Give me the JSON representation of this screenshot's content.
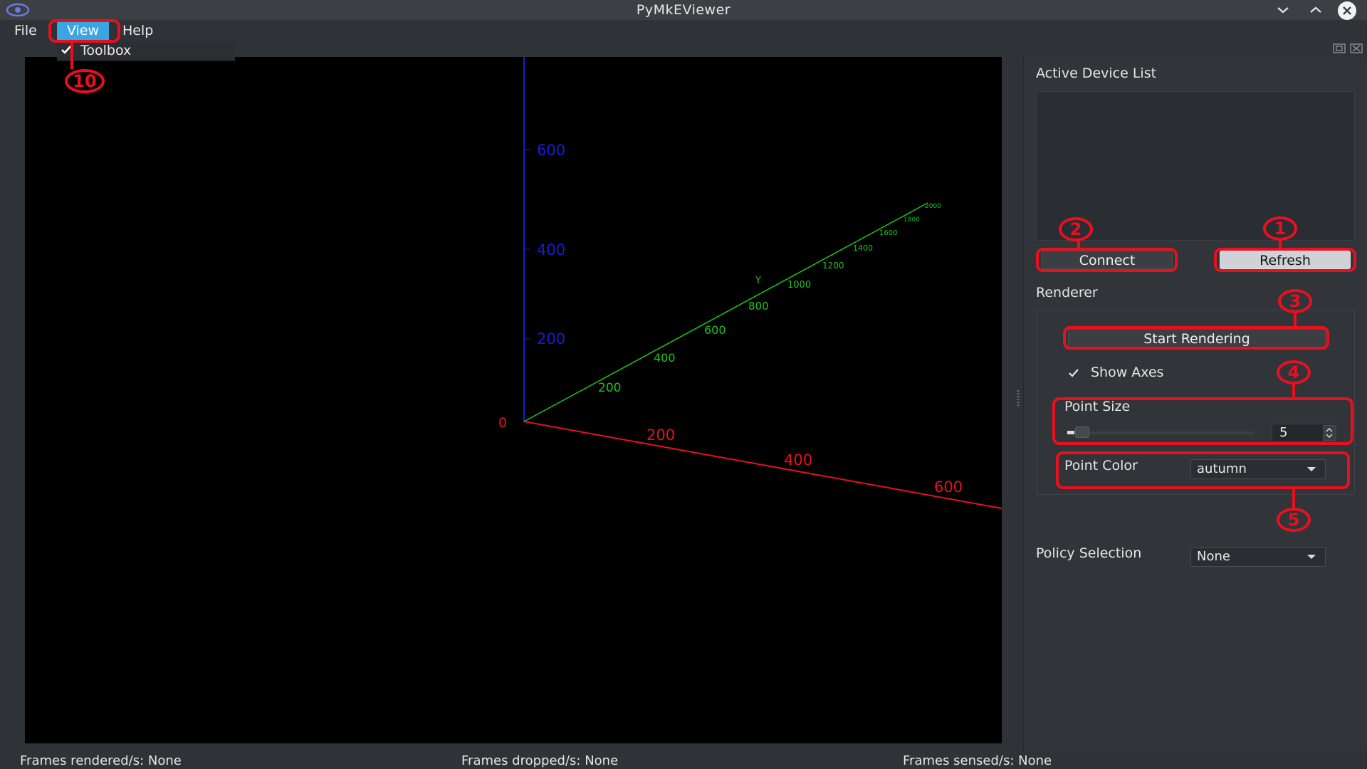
{
  "window": {
    "title": "PyMkEViewer",
    "icons": [
      "app-eye-icon",
      "minimize-icon",
      "maximize-icon",
      "close-icon"
    ]
  },
  "menubar": {
    "file": "File",
    "view": "View",
    "help": "Help",
    "view_menu": {
      "toolbox": "Toolbox",
      "toolbox_checked": true
    }
  },
  "viewport": {
    "z_axis_ticks": [
      "600",
      "400",
      "200"
    ],
    "origin": "0",
    "y_axis_label": "Y",
    "y_axis_ticks": [
      "200",
      "400",
      "600",
      "800",
      "1000",
      "1200",
      "1400",
      "1600",
      "1800",
      "2000"
    ],
    "x_axis_ticks": [
      "200",
      "400",
      "600"
    ],
    "colors": {
      "x_axis": "#e8101e",
      "y_axis": "#18c818",
      "z_axis": "#1a1ad8",
      "background": "#000000"
    }
  },
  "toolbox": {
    "device_list_label": "Active Device List",
    "connect": "Connect",
    "refresh": "Refresh",
    "renderer_label": "Renderer",
    "start_rendering": "Start Rendering",
    "show_axes": "Show Axes",
    "show_axes_checked": true,
    "point_size_label": "Point Size",
    "point_size_value": "5",
    "point_color_label": "Point Color",
    "point_color_value": "autumn",
    "policy_label": "Policy Selection",
    "policy_value": "None"
  },
  "status": {
    "rendered": "Frames rendered/s: None",
    "dropped": "Frames dropped/s: None",
    "sensed": "Frames sensed/s: None"
  },
  "annotations": {
    "n1": "1",
    "n2": "2",
    "n3": "3",
    "n4": "4",
    "n5": "5",
    "n10": "10",
    "color": "#e8101e"
  }
}
